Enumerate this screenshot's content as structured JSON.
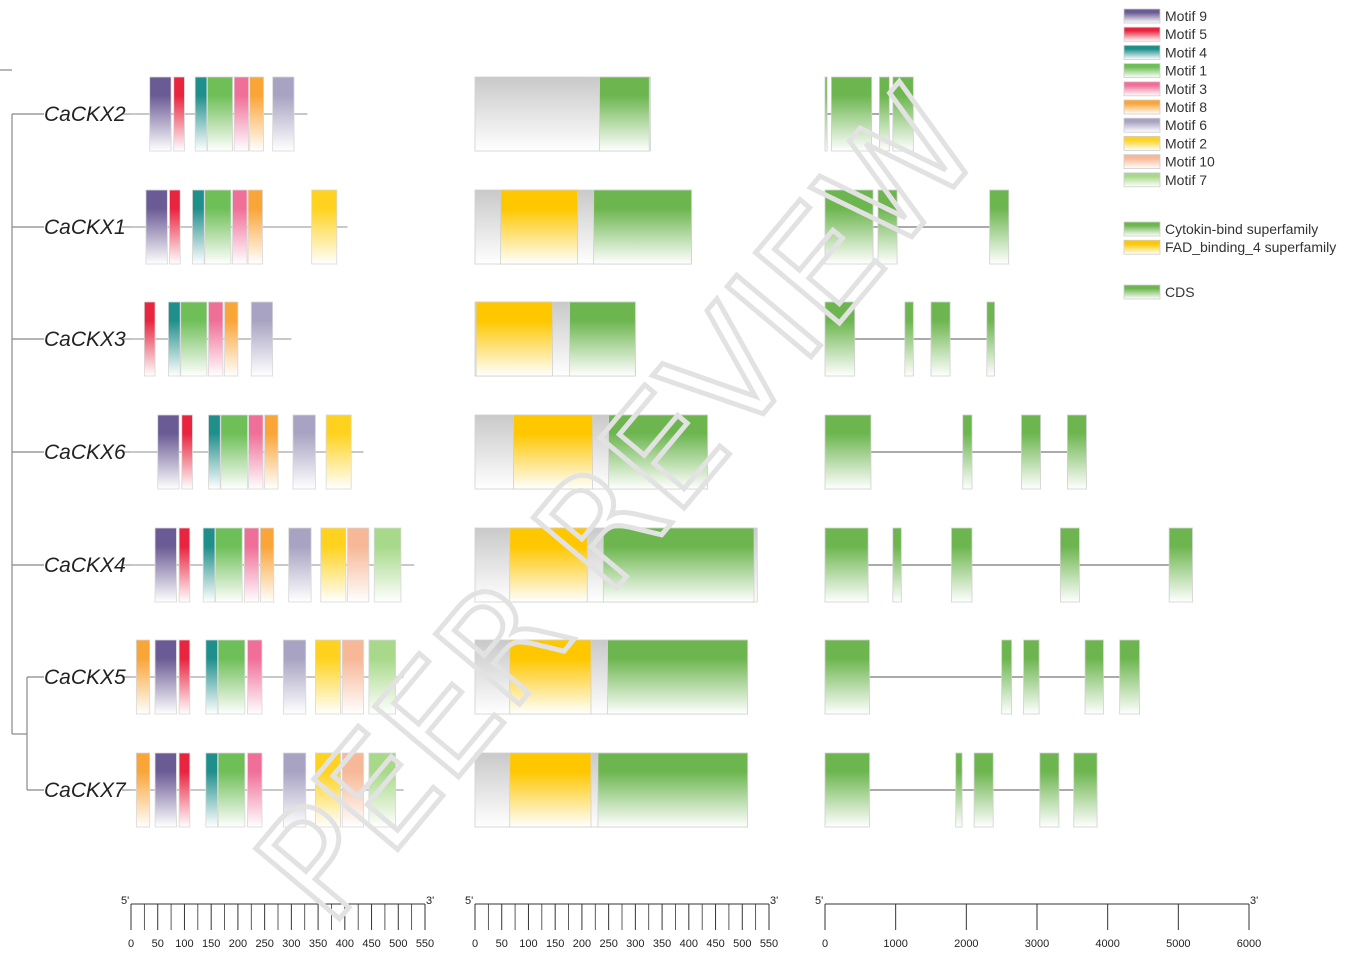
{
  "genes": [
    "CaCKX2",
    "CaCKX1",
    "CaCKX3",
    "CaCKX6",
    "CaCKX4",
    "CaCKX5",
    "CaCKX7"
  ],
  "colors": {
    "Motif 9": "#6b5b95",
    "Motif 5": "#e8243f",
    "Motif 4": "#1f8f8c",
    "Motif 1": "#6fbf58",
    "Motif 3": "#ef6f98",
    "Motif 8": "#f9a538",
    "Motif 6": "#a8a3c2",
    "Motif 2": "#ffd21f",
    "Motif 10": "#f7b897",
    "Motif 7": "#a8d98a",
    "Cytokin-bind superfamily": "#6db64f",
    "FAD_binding_4 superfamily": "#ffc700",
    "CDS": "#6db64f",
    "backbone": "#c8c8c8"
  },
  "legend": {
    "motifs": [
      "Motif 9",
      "Motif 5",
      "Motif 4",
      "Motif 1",
      "Motif 3",
      "Motif 8",
      "Motif 6",
      "Motif 2",
      "Motif 10",
      "Motif 7"
    ],
    "domains": [
      "Cytokin-bind superfamily",
      "FAD_binding_4 superfamily"
    ],
    "structure": [
      "CDS"
    ]
  },
  "motif_tracks": [
    {
      "length": 330,
      "motifs": [
        [
          "Motif 9",
          35,
          75
        ],
        [
          "Motif 5",
          80,
          100
        ],
        [
          "Motif 4",
          120,
          142
        ],
        [
          "Motif 1",
          143,
          190
        ],
        [
          "Motif 3",
          193,
          220
        ],
        [
          "Motif 8",
          222,
          248
        ],
        [
          "Motif 6",
          265,
          305
        ]
      ]
    },
    {
      "length": 405,
      "motifs": [
        [
          "Motif 9",
          28,
          68
        ],
        [
          "Motif 5",
          72,
          92
        ],
        [
          "Motif 4",
          115,
          137
        ],
        [
          "Motif 1",
          138,
          187
        ],
        [
          "Motif 3",
          190,
          217
        ],
        [
          "Motif 8",
          219,
          246
        ],
        [
          "Motif 2",
          338,
          385
        ]
      ]
    },
    {
      "length": 300,
      "motifs": [
        [
          "Motif 5",
          25,
          45
        ],
        [
          "Motif 4",
          70,
          92
        ],
        [
          "Motif 1",
          93,
          142
        ],
        [
          "Motif 3",
          145,
          172
        ],
        [
          "Motif 8",
          175,
          200
        ],
        [
          "Motif 6",
          225,
          265
        ]
      ]
    },
    {
      "length": 435,
      "motifs": [
        [
          "Motif 9",
          50,
          90
        ],
        [
          "Motif 5",
          95,
          115
        ],
        [
          "Motif 4",
          145,
          167
        ],
        [
          "Motif 1",
          168,
          218
        ],
        [
          "Motif 3",
          220,
          247
        ],
        [
          "Motif 8",
          250,
          275
        ],
        [
          "Motif 6",
          303,
          345
        ],
        [
          "Motif 2",
          365,
          412
        ]
      ]
    },
    {
      "length": 530,
      "motifs": [
        [
          "Motif 9",
          45,
          85
        ],
        [
          "Motif 5",
          90,
          110
        ],
        [
          "Motif 4",
          135,
          157
        ],
        [
          "Motif 1",
          158,
          208
        ],
        [
          "Motif 3",
          212,
          239
        ],
        [
          "Motif 8",
          242,
          267
        ],
        [
          "Motif 6",
          295,
          337
        ],
        [
          "Motif 2",
          355,
          402
        ],
        [
          "Motif 10",
          405,
          445
        ],
        [
          "Motif 7",
          455,
          505
        ]
      ]
    },
    {
      "length": 510,
      "motifs": [
        [
          "Motif 8",
          10,
          35
        ],
        [
          "Motif 9",
          45,
          85
        ],
        [
          "Motif 5",
          90,
          110
        ],
        [
          "Motif 4",
          140,
          162
        ],
        [
          "Motif 1",
          163,
          213
        ],
        [
          "Motif 3",
          218,
          245
        ],
        [
          "Motif 6",
          285,
          327
        ],
        [
          "Motif 2",
          345,
          392
        ],
        [
          "Motif 10",
          395,
          435
        ],
        [
          "Motif 7",
          445,
          495
        ]
      ]
    },
    {
      "length": 510,
      "motifs": [
        [
          "Motif 8",
          10,
          35
        ],
        [
          "Motif 9",
          45,
          85
        ],
        [
          "Motif 5",
          90,
          110
        ],
        [
          "Motif 4",
          140,
          162
        ],
        [
          "Motif 1",
          163,
          213
        ],
        [
          "Motif 3",
          218,
          245
        ],
        [
          "Motif 6",
          285,
          327
        ],
        [
          "Motif 2",
          345,
          392
        ],
        [
          "Motif 10",
          395,
          435
        ],
        [
          "Motif 7",
          445,
          495
        ]
      ]
    }
  ],
  "domain_tracks": [
    {
      "length": 328,
      "domains": [
        [
          "Cytokin-bind superfamily",
          233,
          326
        ]
      ]
    },
    {
      "length": 405,
      "domains": [
        [
          "FAD_binding_4 superfamily",
          48,
          192
        ],
        [
          "Cytokin-bind superfamily",
          222,
          405
        ]
      ]
    },
    {
      "length": 300,
      "domains": [
        [
          "FAD_binding_4 superfamily",
          2,
          145
        ],
        [
          "Cytokin-bind superfamily",
          177,
          300
        ]
      ]
    },
    {
      "length": 435,
      "domains": [
        [
          "FAD_binding_4 superfamily",
          72,
          220
        ],
        [
          "Cytokin-bind superfamily",
          250,
          435
        ]
      ]
    },
    {
      "length": 528,
      "domains": [
        [
          "FAD_binding_4 superfamily",
          65,
          210
        ],
        [
          "Cytokin-bind superfamily",
          240,
          522
        ]
      ]
    },
    {
      "length": 510,
      "domains": [
        [
          "FAD_binding_4 superfamily",
          65,
          217
        ],
        [
          "Cytokin-bind superfamily",
          248,
          510
        ]
      ]
    },
    {
      "length": 510,
      "domains": [
        [
          "FAD_binding_4 superfamily",
          65,
          217
        ],
        [
          "Cytokin-bind superfamily",
          230,
          510
        ]
      ]
    }
  ],
  "gene_tracks": [
    {
      "length": 1250,
      "exons": [
        [
          0,
          30
        ],
        [
          90,
          660
        ],
        [
          770,
          910
        ],
        [
          960,
          1250
        ]
      ]
    },
    {
      "length": 2600,
      "exons": [
        [
          0,
          680
        ],
        [
          750,
          1020
        ],
        [
          2330,
          2600
        ]
      ]
    },
    {
      "length": 2400,
      "exons": [
        [
          0,
          420
        ],
        [
          1130,
          1250
        ],
        [
          1500,
          1770
        ],
        [
          2290,
          2400
        ]
      ]
    },
    {
      "length": 3700,
      "exons": [
        [
          0,
          650
        ],
        [
          1950,
          2080
        ],
        [
          2780,
          3050
        ],
        [
          3430,
          3700
        ]
      ]
    },
    {
      "length": 5200,
      "exons": [
        [
          0,
          610
        ],
        [
          960,
          1080
        ],
        [
          1790,
          2080
        ],
        [
          3330,
          3600
        ],
        [
          4870,
          5200
        ]
      ]
    },
    {
      "length": 4450,
      "exons": [
        [
          0,
          630
        ],
        [
          2500,
          2640
        ],
        [
          2810,
          3030
        ],
        [
          3680,
          3940
        ],
        [
          4170,
          4450
        ]
      ]
    },
    {
      "length": 3850,
      "exons": [
        [
          0,
          630
        ],
        [
          1850,
          1940
        ],
        [
          2110,
          2380
        ],
        [
          3040,
          3310
        ],
        [
          3520,
          3850
        ]
      ]
    }
  ],
  "axes": [
    {
      "ticks": [
        "0",
        "50",
        "100",
        "150",
        "200",
        "250",
        "300",
        "350",
        "400",
        "450",
        "500",
        "550"
      ],
      "max": 550,
      "left": "5'",
      "right": "3'"
    },
    {
      "ticks": [
        "0",
        "50",
        "100",
        "150",
        "200",
        "250",
        "300",
        "350",
        "400",
        "450",
        "500",
        "550"
      ],
      "max": 550,
      "left": "5'",
      "right": "3'"
    },
    {
      "ticks": [
        "0",
        "1000",
        "2000",
        "3000",
        "4000",
        "5000",
        "6000"
      ],
      "max": 6000,
      "left": "5'",
      "right": "3'"
    }
  ],
  "watermark": "PEER REVIEW"
}
